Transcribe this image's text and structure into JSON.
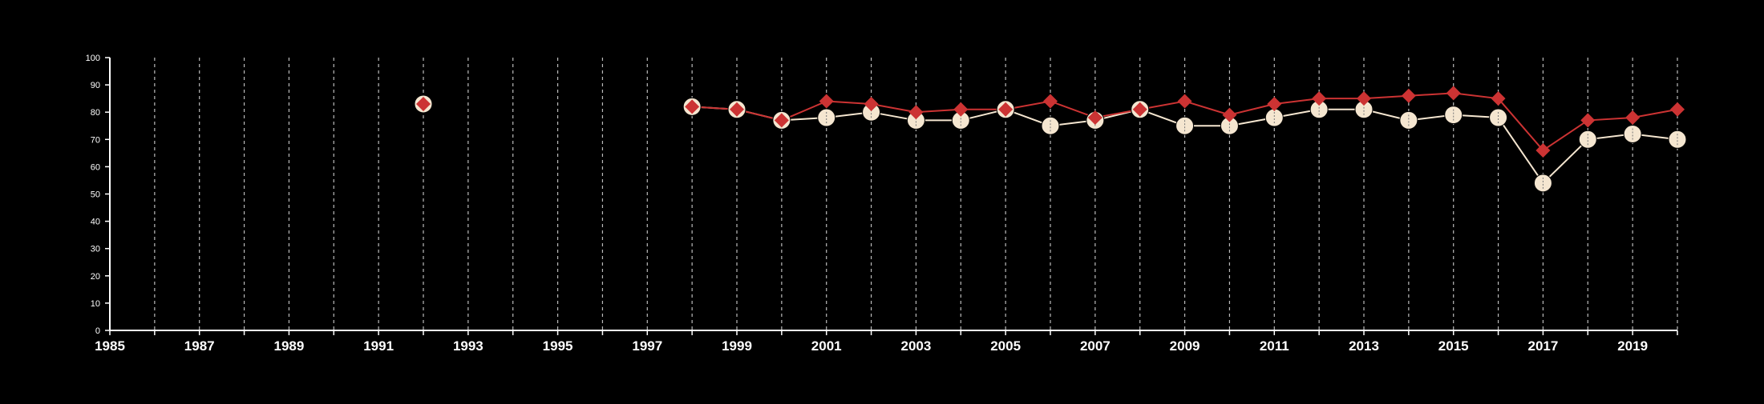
{
  "chart_data": {
    "type": "line",
    "title": "",
    "xlabel": "",
    "ylabel": "",
    "xlim": [
      1985,
      2020
    ],
    "ylim": [
      0,
      100
    ],
    "x_ticks": [
      1985,
      1987,
      1989,
      1991,
      1993,
      1995,
      1997,
      1999,
      2001,
      2003,
      2005,
      2007,
      2009,
      2011,
      2013,
      2015,
      2017,
      2019
    ],
    "y_ticks": [
      0,
      10,
      20,
      30,
      40,
      50,
      60,
      70,
      80,
      90,
      100
    ],
    "grid": "vertical dashed lines at every year",
    "legend": "none",
    "series": [
      {
        "marker": "circle",
        "color": "#f5e6d0",
        "points": [
          {
            "x": 1992,
            "y": 83
          },
          {
            "x": 1998,
            "y": 82
          },
          {
            "x": 1999,
            "y": 81
          },
          {
            "x": 2000,
            "y": 77
          },
          {
            "x": 2001,
            "y": 78
          },
          {
            "x": 2002,
            "y": 80
          },
          {
            "x": 2003,
            "y": 77
          },
          {
            "x": 2004,
            "y": 77
          },
          {
            "x": 2005,
            "y": 81
          },
          {
            "x": 2006,
            "y": 75
          },
          {
            "x": 2007,
            "y": 77
          },
          {
            "x": 2008,
            "y": 81
          },
          {
            "x": 2009,
            "y": 75
          },
          {
            "x": 2010,
            "y": 75
          },
          {
            "x": 2011,
            "y": 78
          },
          {
            "x": 2012,
            "y": 81
          },
          {
            "x": 2013,
            "y": 81
          },
          {
            "x": 2014,
            "y": 77
          },
          {
            "x": 2015,
            "y": 79
          },
          {
            "x": 2016,
            "y": 78
          },
          {
            "x": 2017,
            "y": 54
          },
          {
            "x": 2018,
            "y": 70
          },
          {
            "x": 2019,
            "y": 72
          },
          {
            "x": 2020,
            "y": 70
          }
        ]
      },
      {
        "marker": "diamond",
        "color": "#cc3333",
        "points": [
          {
            "x": 1992,
            "y": 83
          },
          {
            "x": 1998,
            "y": 82
          },
          {
            "x": 1999,
            "y": 81
          },
          {
            "x": 2000,
            "y": 77
          },
          {
            "x": 2001,
            "y": 84
          },
          {
            "x": 2002,
            "y": 83
          },
          {
            "x": 2003,
            "y": 80
          },
          {
            "x": 2004,
            "y": 81
          },
          {
            "x": 2005,
            "y": 81
          },
          {
            "x": 2006,
            "y": 84
          },
          {
            "x": 2007,
            "y": 78
          },
          {
            "x": 2008,
            "y": 81
          },
          {
            "x": 2009,
            "y": 84
          },
          {
            "x": 2010,
            "y": 79
          },
          {
            "x": 2011,
            "y": 83
          },
          {
            "x": 2012,
            "y": 85
          },
          {
            "x": 2013,
            "y": 85
          },
          {
            "x": 2014,
            "y": 86
          },
          {
            "x": 2015,
            "y": 87
          },
          {
            "x": 2016,
            "y": 85
          },
          {
            "x": 2017,
            "y": 66
          },
          {
            "x": 2018,
            "y": 77
          },
          {
            "x": 2019,
            "y": 78
          },
          {
            "x": 2020,
            "y": 81
          }
        ]
      }
    ]
  },
  "colors": {
    "background": "#000000",
    "axis": "#ffffff",
    "grid": "#bbbbbb"
  }
}
